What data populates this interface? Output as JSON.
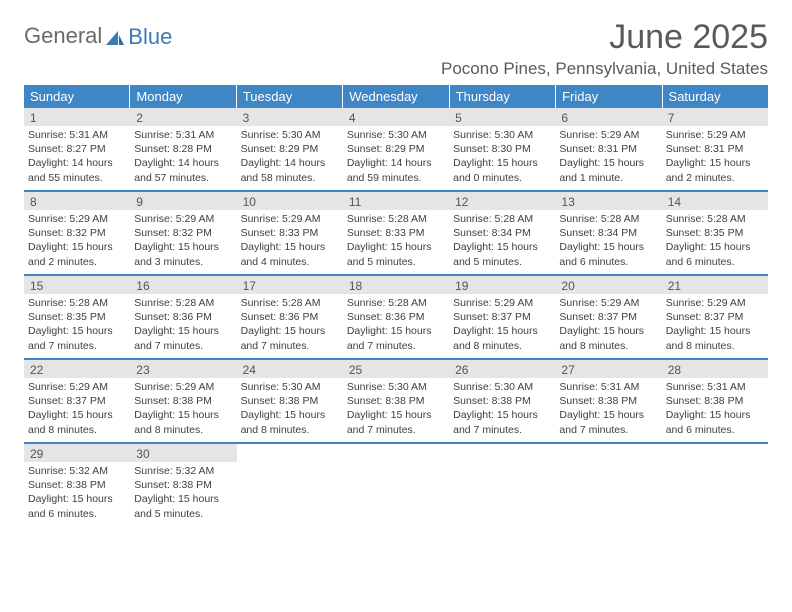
{
  "logo": {
    "textGray": "General",
    "textBlue": "Blue"
  },
  "header": {
    "month": "June 2025",
    "location": "Pocono Pines, Pennsylvania, United States"
  },
  "theme": {
    "accent": "#3f86c6",
    "dayNumBg": "#e5e5e5",
    "textColor": "#404040",
    "titleColor": "#5a5a5a"
  },
  "dayNames": [
    "Sunday",
    "Monday",
    "Tuesday",
    "Wednesday",
    "Thursday",
    "Friday",
    "Saturday"
  ],
  "weeks": [
    [
      {
        "n": "1",
        "sr": "5:31 AM",
        "ss": "8:27 PM",
        "dl": "14 hours and 55 minutes."
      },
      {
        "n": "2",
        "sr": "5:31 AM",
        "ss": "8:28 PM",
        "dl": "14 hours and 57 minutes."
      },
      {
        "n": "3",
        "sr": "5:30 AM",
        "ss": "8:29 PM",
        "dl": "14 hours and 58 minutes."
      },
      {
        "n": "4",
        "sr": "5:30 AM",
        "ss": "8:29 PM",
        "dl": "14 hours and 59 minutes."
      },
      {
        "n": "5",
        "sr": "5:30 AM",
        "ss": "8:30 PM",
        "dl": "15 hours and 0 minutes."
      },
      {
        "n": "6",
        "sr": "5:29 AM",
        "ss": "8:31 PM",
        "dl": "15 hours and 1 minute."
      },
      {
        "n": "7",
        "sr": "5:29 AM",
        "ss": "8:31 PM",
        "dl": "15 hours and 2 minutes."
      }
    ],
    [
      {
        "n": "8",
        "sr": "5:29 AM",
        "ss": "8:32 PM",
        "dl": "15 hours and 2 minutes."
      },
      {
        "n": "9",
        "sr": "5:29 AM",
        "ss": "8:32 PM",
        "dl": "15 hours and 3 minutes."
      },
      {
        "n": "10",
        "sr": "5:29 AM",
        "ss": "8:33 PM",
        "dl": "15 hours and 4 minutes."
      },
      {
        "n": "11",
        "sr": "5:28 AM",
        "ss": "8:33 PM",
        "dl": "15 hours and 5 minutes."
      },
      {
        "n": "12",
        "sr": "5:28 AM",
        "ss": "8:34 PM",
        "dl": "15 hours and 5 minutes."
      },
      {
        "n": "13",
        "sr": "5:28 AM",
        "ss": "8:34 PM",
        "dl": "15 hours and 6 minutes."
      },
      {
        "n": "14",
        "sr": "5:28 AM",
        "ss": "8:35 PM",
        "dl": "15 hours and 6 minutes."
      }
    ],
    [
      {
        "n": "15",
        "sr": "5:28 AM",
        "ss": "8:35 PM",
        "dl": "15 hours and 7 minutes."
      },
      {
        "n": "16",
        "sr": "5:28 AM",
        "ss": "8:36 PM",
        "dl": "15 hours and 7 minutes."
      },
      {
        "n": "17",
        "sr": "5:28 AM",
        "ss": "8:36 PM",
        "dl": "15 hours and 7 minutes."
      },
      {
        "n": "18",
        "sr": "5:28 AM",
        "ss": "8:36 PM",
        "dl": "15 hours and 7 minutes."
      },
      {
        "n": "19",
        "sr": "5:29 AM",
        "ss": "8:37 PM",
        "dl": "15 hours and 8 minutes."
      },
      {
        "n": "20",
        "sr": "5:29 AM",
        "ss": "8:37 PM",
        "dl": "15 hours and 8 minutes."
      },
      {
        "n": "21",
        "sr": "5:29 AM",
        "ss": "8:37 PM",
        "dl": "15 hours and 8 minutes."
      }
    ],
    [
      {
        "n": "22",
        "sr": "5:29 AM",
        "ss": "8:37 PM",
        "dl": "15 hours and 8 minutes."
      },
      {
        "n": "23",
        "sr": "5:29 AM",
        "ss": "8:38 PM",
        "dl": "15 hours and 8 minutes."
      },
      {
        "n": "24",
        "sr": "5:30 AM",
        "ss": "8:38 PM",
        "dl": "15 hours and 8 minutes."
      },
      {
        "n": "25",
        "sr": "5:30 AM",
        "ss": "8:38 PM",
        "dl": "15 hours and 7 minutes."
      },
      {
        "n": "26",
        "sr": "5:30 AM",
        "ss": "8:38 PM",
        "dl": "15 hours and 7 minutes."
      },
      {
        "n": "27",
        "sr": "5:31 AM",
        "ss": "8:38 PM",
        "dl": "15 hours and 7 minutes."
      },
      {
        "n": "28",
        "sr": "5:31 AM",
        "ss": "8:38 PM",
        "dl": "15 hours and 6 minutes."
      }
    ],
    [
      {
        "n": "29",
        "sr": "5:32 AM",
        "ss": "8:38 PM",
        "dl": "15 hours and 6 minutes."
      },
      {
        "n": "30",
        "sr": "5:32 AM",
        "ss": "8:38 PM",
        "dl": "15 hours and 5 minutes."
      },
      null,
      null,
      null,
      null,
      null
    ]
  ],
  "labels": {
    "sunrise": "Sunrise:",
    "sunset": "Sunset:",
    "daylight": "Daylight:"
  }
}
